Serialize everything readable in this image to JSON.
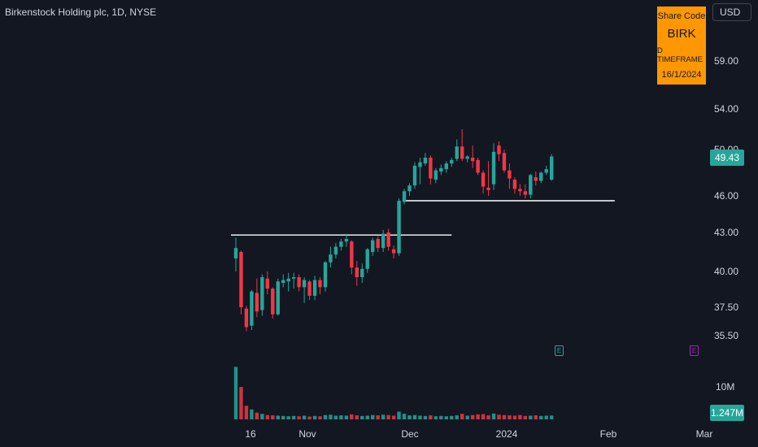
{
  "header": {
    "title": "Birkenstock Holding plc, 1D, NYSE",
    "currency": "USD"
  },
  "overlay": {
    "label": "Share Code",
    "code": "BIRK",
    "timeframe": "D TIMEFRAME",
    "date": "16/1/2024"
  },
  "last_price_label": "49.43",
  "last_volume_label": "1.247M",
  "events": [
    "E",
    "E"
  ],
  "colors": {
    "up": "#26a69a",
    "down": "#f23645",
    "bg": "#131722",
    "accent": "#ff9800",
    "event_past": "#26a69a",
    "event_future": "#9c27b0"
  },
  "chart_data": {
    "type": "candlestick",
    "y_ticks": [
      "59.00",
      "54.00",
      "50.00",
      "46.00",
      "43.00",
      "40.00",
      "37.50",
      "35.50"
    ],
    "volume_ticks": [
      "10M"
    ],
    "x_ticks": [
      "16",
      "Nov",
      "Dec",
      "2024",
      "Feb",
      "Mar"
    ],
    "ohlc": [
      [
        41.0,
        42.6,
        40.0,
        41.8
      ],
      [
        41.5,
        41.6,
        37.0,
        37.5
      ],
      [
        37.4,
        37.6,
        35.8,
        36.1
      ],
      [
        36.2,
        38.7,
        35.9,
        38.6
      ],
      [
        38.5,
        39.5,
        36.8,
        37.2
      ],
      [
        37.3,
        39.8,
        36.9,
        39.6
      ],
      [
        39.5,
        40.0,
        38.4,
        38.8
      ],
      [
        38.8,
        38.9,
        36.7,
        37.0
      ],
      [
        37.0,
        39.5,
        36.9,
        39.3
      ],
      [
        39.2,
        39.8,
        38.9,
        39.4
      ],
      [
        39.3,
        39.9,
        38.6,
        39.5
      ],
      [
        39.5,
        39.9,
        38.8,
        39.6
      ],
      [
        39.6,
        39.8,
        38.6,
        38.9
      ],
      [
        38.9,
        39.6,
        37.8,
        39.4
      ],
      [
        39.3,
        39.4,
        38.0,
        38.3
      ],
      [
        38.3,
        39.7,
        38.0,
        39.4
      ],
      [
        39.4,
        39.6,
        38.4,
        38.9
      ],
      [
        38.9,
        40.8,
        38.6,
        40.7
      ],
      [
        40.7,
        41.9,
        40.3,
        41.3
      ],
      [
        41.3,
        42.2,
        41.0,
        41.9
      ],
      [
        41.9,
        42.5,
        41.6,
        42.3
      ],
      [
        42.3,
        42.9,
        41.9,
        42.5
      ],
      [
        42.3,
        42.4,
        39.8,
        40.3
      ],
      [
        40.3,
        40.8,
        39.0,
        39.6
      ],
      [
        39.6,
        40.6,
        39.2,
        40.2
      ],
      [
        40.2,
        41.8,
        39.9,
        41.7
      ],
      [
        41.5,
        42.6,
        41.2,
        42.4
      ],
      [
        42.5,
        42.7,
        41.5,
        41.8
      ],
      [
        41.8,
        43.2,
        41.5,
        42.9
      ],
      [
        43.0,
        43.3,
        41.6,
        41.9
      ],
      [
        41.7,
        42.0,
        41.0,
        41.4
      ],
      [
        41.4,
        45.8,
        41.2,
        45.6
      ],
      [
        45.5,
        46.6,
        45.3,
        46.4
      ],
      [
        46.4,
        47.1,
        46.0,
        46.9
      ],
      [
        46.9,
        48.9,
        46.6,
        48.6
      ],
      [
        48.5,
        49.3,
        47.0,
        48.9
      ],
      [
        48.8,
        49.7,
        48.6,
        49.3
      ],
      [
        49.3,
        49.5,
        47.0,
        47.5
      ],
      [
        47.4,
        48.4,
        47.1,
        48.2
      ],
      [
        48.1,
        48.7,
        47.8,
        48.4
      ],
      [
        48.3,
        49.0,
        48.0,
        48.8
      ],
      [
        48.8,
        49.3,
        48.5,
        49.1
      ],
      [
        49.2,
        51.0,
        49.0,
        50.3
      ],
      [
        50.3,
        52.0,
        49.0,
        49.2
      ],
      [
        49.2,
        49.5,
        48.9,
        49.4
      ],
      [
        49.3,
        50.4,
        48.4,
        49.0
      ],
      [
        49.1,
        49.3,
        47.8,
        48.0
      ],
      [
        48.0,
        48.2,
        46.2,
        46.8
      ],
      [
        46.7,
        49.0,
        46.0,
        46.5
      ],
      [
        47.0,
        50.6,
        46.5,
        49.8
      ],
      [
        50.4,
        50.8,
        49.0,
        49.6
      ],
      [
        49.7,
        50.0,
        48.0,
        48.2
      ],
      [
        48.2,
        48.8,
        46.6,
        47.5
      ],
      [
        47.4,
        47.6,
        46.2,
        46.6
      ],
      [
        46.6,
        47.0,
        46.0,
        46.4
      ],
      [
        46.4,
        47.0,
        45.8,
        46.1
      ],
      [
        46.1,
        47.9,
        45.8,
        47.8
      ],
      [
        47.6,
        48.1,
        46.9,
        47.3
      ],
      [
        47.3,
        48.1,
        47.1,
        48.0
      ],
      [
        48.0,
        48.6,
        47.8,
        48.3
      ],
      [
        47.4,
        49.6,
        47.3,
        49.4
      ]
    ],
    "volume_millions": [
      17.0,
      10.5,
      4.4,
      3.2,
      2.2,
      1.8,
      1.4,
      1.3,
      1.2,
      1.1,
      1.0,
      1.1,
      1.0,
      1.2,
      0.9,
      1.1,
      1.0,
      1.4,
      1.5,
      1.2,
      1.3,
      1.2,
      1.6,
      1.3,
      1.1,
      1.2,
      1.4,
      1.3,
      1.5,
      1.4,
      1.2,
      2.5,
      1.8,
      1.3,
      1.4,
      1.2,
      1.1,
      1.3,
      1.0,
      1.1,
      1.0,
      1.1,
      1.3,
      1.8,
      1.2,
      1.4,
      1.6,
      1.7,
      1.3,
      1.9,
      1.5,
      1.4,
      1.3,
      1.2,
      1.4,
      1.1,
      1.2,
      1.3,
      1.1,
      1.2,
      1.247
    ],
    "levels": [
      {
        "price": 42.8,
        "from_bar": 0,
        "to_bar": 41
      },
      {
        "price": 45.6,
        "from_bar": 33,
        "to_bar": 72
      }
    ]
  }
}
